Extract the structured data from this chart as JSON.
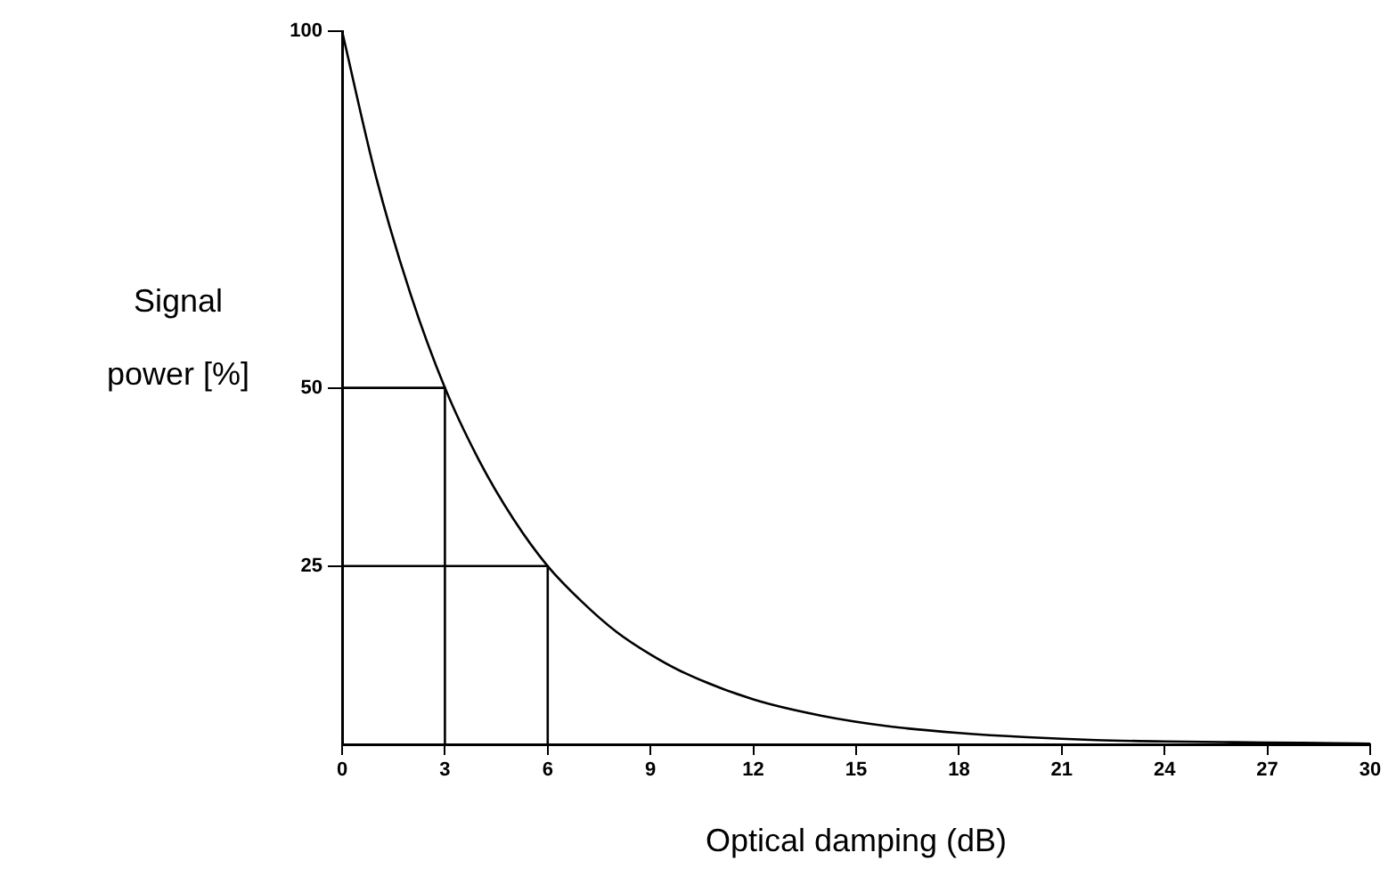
{
  "chart_data": {
    "type": "line",
    "xlabel": "Optical damping (dB)",
    "ylabel": "Signal power [%]",
    "xlim": [
      0,
      30
    ],
    "xticks": [
      0,
      3,
      6,
      9,
      12,
      15,
      18,
      21,
      24,
      27,
      30
    ],
    "ylim": [
      0,
      100
    ],
    "yticks": [
      25,
      50,
      100
    ],
    "marker": "none",
    "line_style": "solid",
    "legend": false,
    "series": [
      {
        "color": "#000000",
        "x": [
          0,
          1,
          2,
          3,
          4,
          5,
          6,
          7,
          8,
          9,
          10,
          12,
          14,
          16,
          18,
          20,
          22,
          24,
          26,
          28,
          30
        ],
        "values": [
          100,
          79.4,
          63.1,
          50,
          39.8,
          31.6,
          25,
          20,
          15.8,
          12.6,
          10,
          6.3,
          4,
          2.5,
          1.6,
          1,
          0.6,
          0.4,
          0.3,
          0.2,
          0.1
        ]
      },
      {
        "color": "#000000",
        "x": [
          0,
          3,
          3
        ],
        "values": [
          50,
          50,
          0
        ]
      },
      {
        "color": "#000000",
        "x": [
          0,
          6,
          6
        ],
        "values": [
          25,
          25,
          0
        ]
      }
    ]
  }
}
